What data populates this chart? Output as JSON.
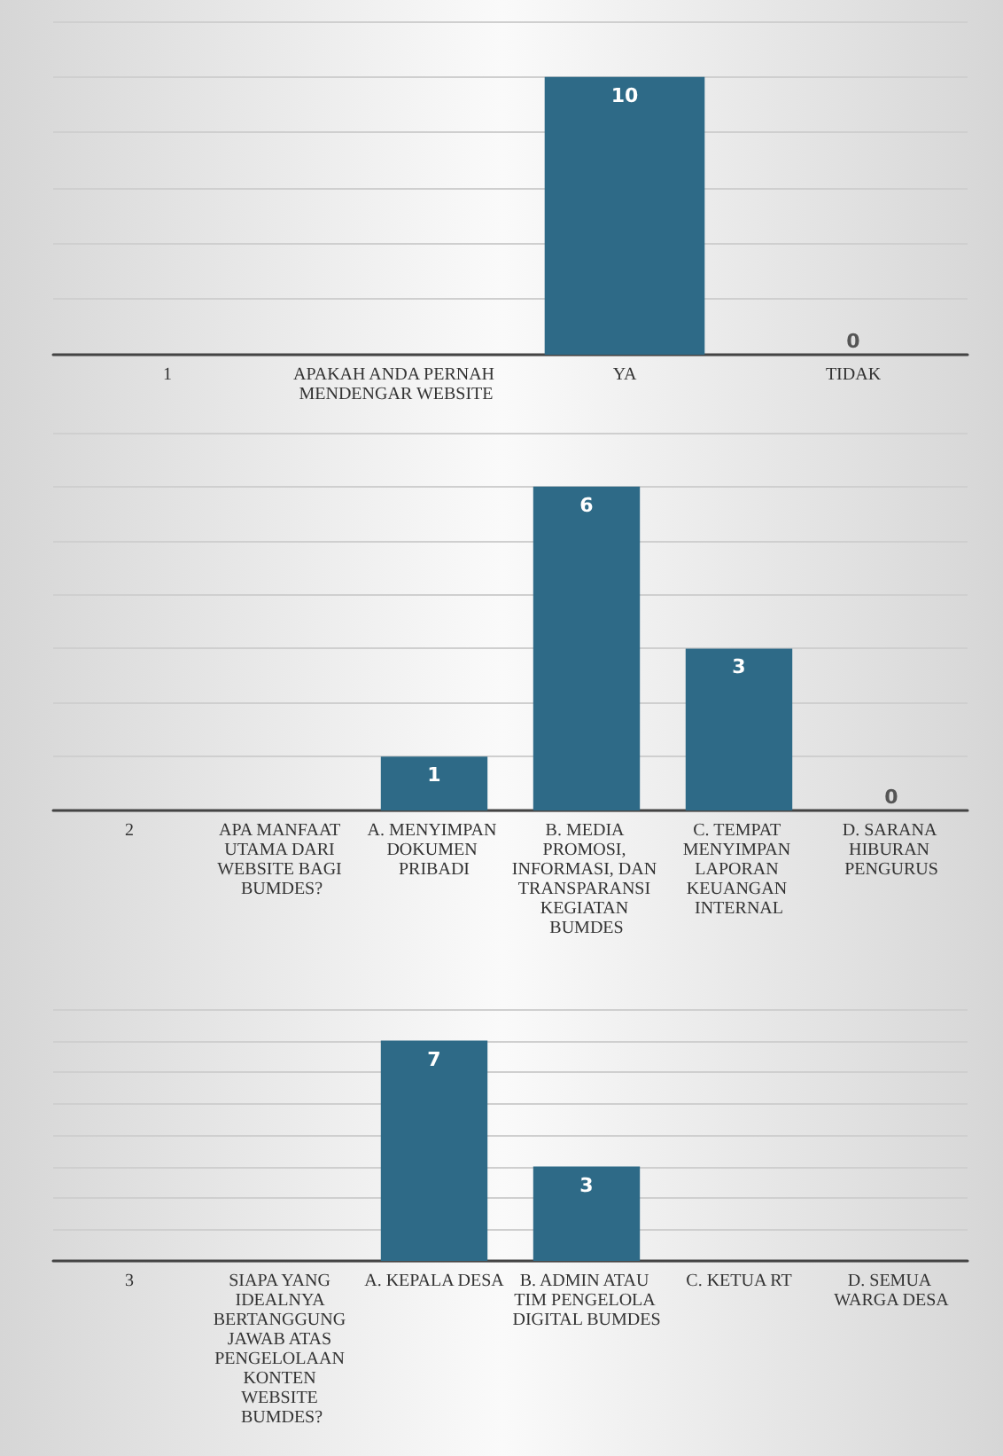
{
  "chart_data": [
    {
      "type": "bar",
      "categories": [
        "1",
        "APAKAH ANDA PERNAH MENDENGAR WEBSITE",
        "YA",
        "TIDAK"
      ],
      "values": [
        null,
        null,
        10,
        0
      ],
      "color": "#2e6a87",
      "ylim": [
        0,
        12
      ],
      "yticks": [
        {
          "value": 0,
          "label": null
        },
        {
          "value": 2,
          "label": null
        },
        {
          "value": 4,
          "label": null
        },
        {
          "value": 6,
          "label": null
        },
        {
          "value": 8,
          "label": null
        },
        {
          "value": 10,
          "label": null
        },
        {
          "value": 12,
          "label": null
        }
      ],
      "grid": "y",
      "data_labels": true,
      "tick_labels": "x"
    },
    {
      "type": "bar",
      "categories": [
        "2",
        "APA MANFAAT UTAMA DARI WEBSITE BAGI BUMDES?",
        "A. MENYIMPAN DOKUMEN PRIBADI",
        "B. MEDIA PROMOSI, INFORMASI, DAN TRANSPARANSI KEGIATAN BUMDES",
        "C. TEMPAT MENYIMPAN LAPORAN KEUANGAN INTERNAL",
        "D. SARANA HIBURAN PENGURUS"
      ],
      "values": [
        null,
        null,
        1,
        6,
        3,
        0
      ],
      "color": "#2e6a87",
      "ylim": [
        0,
        7
      ],
      "yticks": [
        {
          "value": 0,
          "label": null
        },
        {
          "value": 1,
          "label": null
        },
        {
          "value": 2,
          "label": null
        },
        {
          "value": 3,
          "label": null
        },
        {
          "value": 4,
          "label": null
        },
        {
          "value": 5,
          "label": null
        },
        {
          "value": 6,
          "label": null
        },
        {
          "value": 7,
          "label": null
        }
      ],
      "grid": "y",
      "data_labels": true,
      "tick_labels": "x"
    },
    {
      "type": "bar",
      "categories": [
        "3",
        "SIAPA YANG IDEALNYA BERTANGGUNG JAWAB ATAS PENGELOLAAN KONTEN WEBSITE BUMDES?",
        "A. KEPALA DESA",
        "B. ADMIN ATAU TIM PENGELOLA DIGITAL BUMDES",
        "C. KETUA RT",
        "D. SEMUA WARGA DESA"
      ],
      "values": [
        null,
        null,
        7,
        3,
        null,
        null
      ],
      "color": "#2e6a87",
      "ylim": [
        0,
        8
      ],
      "yticks": [
        {
          "value": 0,
          "label": null
        },
        {
          "value": 1,
          "label": null
        },
        {
          "value": 2,
          "label": null
        },
        {
          "value": 3,
          "label": null
        },
        {
          "value": 4,
          "label": null
        },
        {
          "value": 5,
          "label": null
        },
        {
          "value": 6,
          "label": null
        },
        {
          "value": 7,
          "label": null
        },
        {
          "value": 8,
          "label": null
        }
      ],
      "grid": "y",
      "data_labels": true,
      "tick_labels": "x"
    }
  ]
}
